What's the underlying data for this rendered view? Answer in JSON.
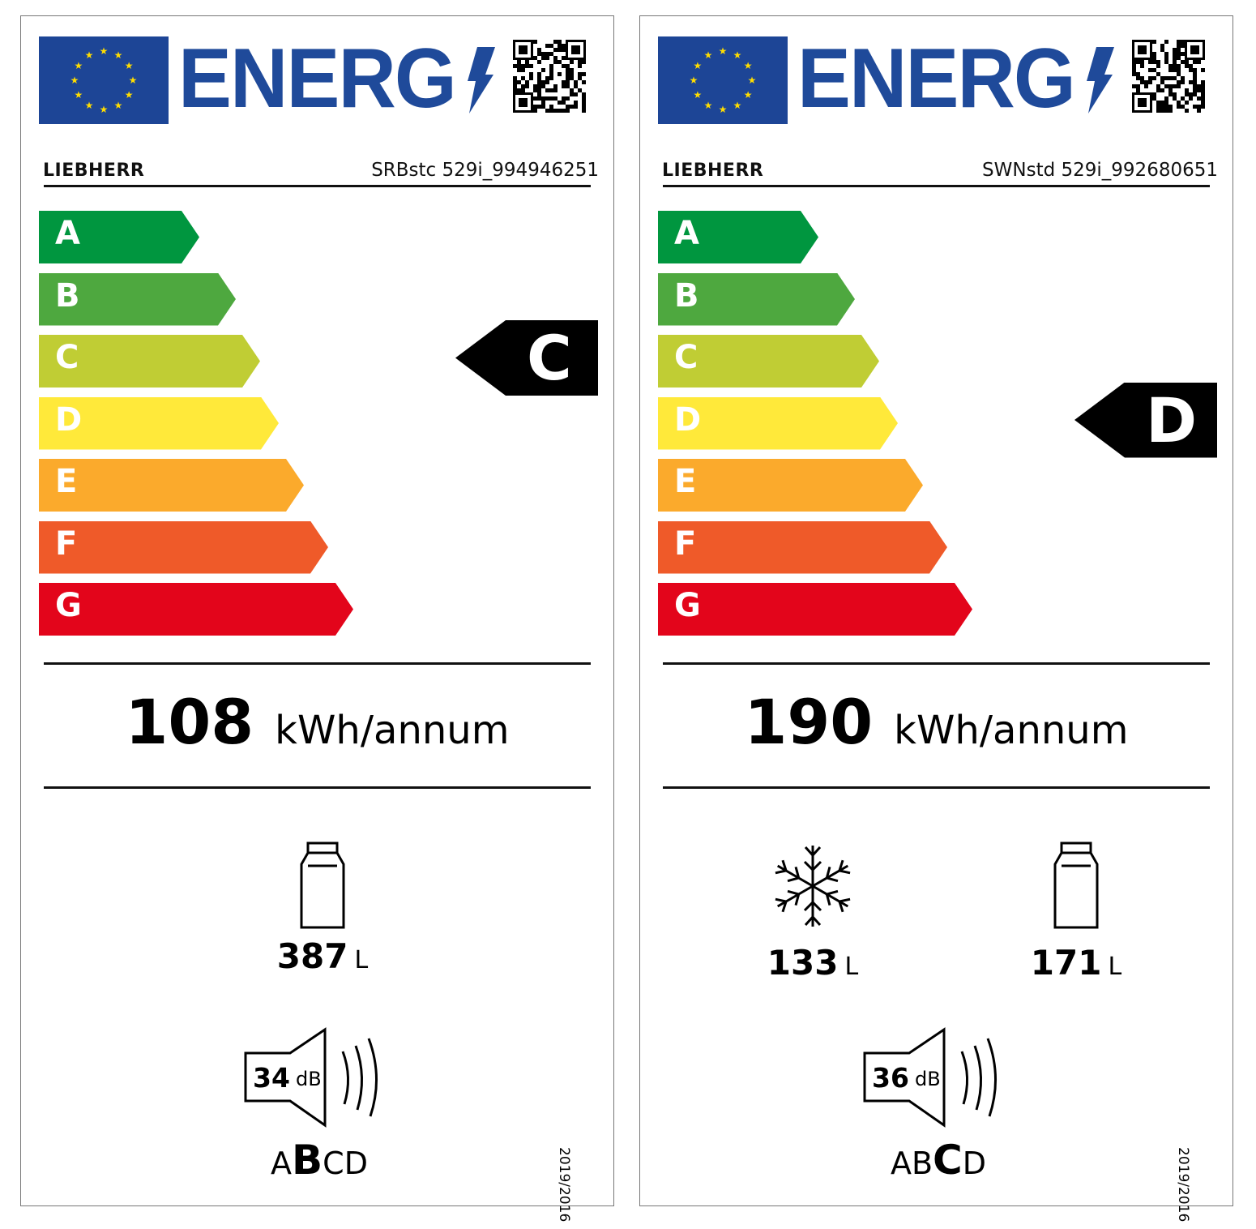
{
  "colors": {
    "eu_blue": "#1d4596",
    "energy_blue": "#1f4a9a",
    "A": "#00963f",
    "B": "#4ea83f",
    "C": "#c0cd34",
    "D": "#ffe93a",
    "E": "#fbaa2c",
    "F": "#ef5a29",
    "G": "#e3051b"
  },
  "scale": [
    "A",
    "B",
    "C",
    "D",
    "E",
    "F",
    "G"
  ],
  "labels": [
    {
      "title": "ENERG",
      "brand": "LIEBHERR",
      "model": "SRBstc 529i_994946251",
      "rating": "C",
      "energy_value": "108",
      "energy_unit": "kWh/annum",
      "compartments": [
        {
          "icon": "fridge-icon",
          "volume": "387",
          "unit": "L"
        }
      ],
      "noise_value": "34",
      "noise_unit": "dB",
      "noise_classes": [
        "A",
        "B",
        "C",
        "D"
      ],
      "noise_class": "B",
      "regulation": "2019/2016"
    },
    {
      "title": "ENERG",
      "brand": "LIEBHERR",
      "model": "SWNstd 529i_992680651",
      "rating": "D",
      "energy_value": "190",
      "energy_unit": "kWh/annum",
      "compartments": [
        {
          "icon": "snowflake-icon",
          "volume": "133",
          "unit": "L"
        },
        {
          "icon": "fridge-icon",
          "volume": "171",
          "unit": "L"
        }
      ],
      "noise_value": "36",
      "noise_unit": "dB",
      "noise_classes": [
        "A",
        "B",
        "C",
        "D"
      ],
      "noise_class": "C",
      "regulation": "2019/2016"
    }
  ]
}
